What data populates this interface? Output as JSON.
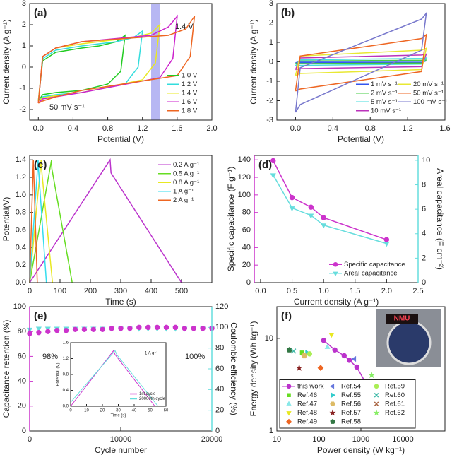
{
  "chart_data": [
    {
      "type": "line",
      "panel_label": "(a)",
      "xlabel": "Potential (V)",
      "ylabel": "Current density  (A g⁻¹)",
      "xlim": [
        -0.1,
        2.0
      ],
      "ylim": [
        -2.5,
        3
      ],
      "xticks": [
        {
          "value": 0,
          "label": "0.0"
        },
        0.4,
        0.8,
        1.2,
        1.6,
        {
          "value": 2,
          "label": "2.0"
        }
      ],
      "yticks": [
        -2,
        -1,
        0,
        1,
        2,
        3
      ],
      "highlight": [
        1.3,
        1.4
      ],
      "highlight_color": "#9999ee",
      "legend": "lower right",
      "annotations": [
        "1.4 V",
        "50 mV s⁻¹"
      ],
      "series": [
        {
          "name": "1.0 V",
          "color": "#22cc22",
          "x": [
            0,
            0.05,
            0.2,
            0.5,
            0.7,
            0.9,
            1.0,
            0.95,
            0.8,
            0.5,
            0.2,
            0.05,
            0
          ],
          "values": [
            -1.6,
            0.3,
            0.7,
            0.9,
            1.0,
            1.2,
            1.5,
            -0.2,
            -0.8,
            -1.1,
            -1.2,
            -1.3,
            -1.6
          ]
        },
        {
          "name": "1.2 V",
          "color": "#33dddd",
          "x": [
            0,
            0.05,
            0.2,
            0.5,
            0.9,
            1.1,
            1.2,
            1.15,
            1.0,
            0.5,
            0.2,
            0.05,
            0
          ],
          "values": [
            -1.6,
            0.4,
            0.8,
            1.0,
            1.2,
            1.4,
            1.7,
            0.0,
            -0.8,
            -1.2,
            -1.3,
            -1.4,
            -1.6
          ]
        },
        {
          "name": "1.4 V",
          "color": "#e8e822",
          "x": [
            0,
            0.05,
            0.2,
            0.5,
            1.1,
            1.3,
            1.4,
            1.35,
            1.2,
            0.5,
            0.2,
            0.05,
            0
          ],
          "values": [
            -1.6,
            0.5,
            0.9,
            1.1,
            1.4,
            1.6,
            2.0,
            0.2,
            -0.6,
            -1.2,
            -1.35,
            -1.45,
            -1.6
          ]
        },
        {
          "name": "1.6 V",
          "color": "#cc22cc",
          "x": [
            0,
            0.05,
            0.2,
            0.5,
            1.3,
            1.5,
            1.6,
            1.55,
            1.4,
            0.5,
            0.2,
            0.05,
            0
          ],
          "values": [
            -1.7,
            0.5,
            0.9,
            1.2,
            1.5,
            1.9,
            2.4,
            0.4,
            -0.5,
            -1.2,
            -1.4,
            -1.5,
            -1.7
          ]
        },
        {
          "name": "1.8 V",
          "color": "#ee6622",
          "x": [
            0,
            0.05,
            0.2,
            0.5,
            1.5,
            1.7,
            1.8,
            1.75,
            1.6,
            0.5,
            0.2,
            0.05,
            0
          ],
          "values": [
            -1.7,
            0.5,
            0.9,
            1.2,
            1.5,
            1.8,
            2.4,
            0.5,
            -0.4,
            -1.1,
            -1.4,
            -1.6,
            -1.7
          ]
        }
      ]
    },
    {
      "type": "line",
      "panel_label": "(b)",
      "xlabel": "Potential (V)",
      "ylabel": "Current density (A g⁻¹)",
      "xlim": [
        -0.2,
        1.6
      ],
      "ylim": [
        -3,
        3
      ],
      "xticks": [
        {
          "value": 0,
          "label": "0.0"
        },
        0.4,
        0.8,
        1.2,
        1.6
      ],
      "yticks": [
        -3,
        -2,
        -1,
        0,
        1,
        2,
        3
      ],
      "legend": "lower right",
      "legend_columns": 2,
      "x": [
        0,
        0.05,
        1.35,
        1.4,
        1.35,
        0.05,
        0
      ],
      "series": [
        {
          "name": "1 mV s⁻¹",
          "color": "#3355ee",
          "values": [
            -0.05,
            0.02,
            0.04,
            0.05,
            -0.03,
            -0.04,
            -0.05
          ]
        },
        {
          "name": "2 mV s⁻¹",
          "color": "#44cc44",
          "values": [
            -0.1,
            0.04,
            0.08,
            0.1,
            -0.06,
            -0.09,
            -0.1
          ]
        },
        {
          "name": "5 mV s⁻¹",
          "color": "#44dddd",
          "values": [
            -0.2,
            0.1,
            0.17,
            0.2,
            -0.12,
            -0.18,
            -0.2
          ]
        },
        {
          "name": "10 mV s⁻¹",
          "color": "#bb33bb",
          "values": [
            -0.4,
            0.2,
            0.35,
            0.4,
            -0.25,
            -0.35,
            -0.4
          ]
        },
        {
          "name": "20 mV s⁻¹",
          "color": "#e8e833",
          "values": [
            -0.7,
            0.3,
            0.6,
            0.7,
            -0.4,
            -0.6,
            -0.7
          ]
        },
        {
          "name": "50 mV s⁻¹",
          "color": "#ee6622",
          "values": [
            -1.5,
            0.3,
            1.2,
            1.4,
            -0.5,
            -1.4,
            -1.5
          ]
        },
        {
          "name": "100 mV s⁻¹",
          "color": "#7777cc",
          "values": [
            -2.6,
            -0.3,
            2.2,
            2.5,
            0.6,
            -2.2,
            -2.6
          ]
        }
      ]
    },
    {
      "type": "line",
      "panel_label": "(c)",
      "xlabel": "Time (s)",
      "ylabel": "Potential(V)",
      "xlim": [
        0,
        600
      ],
      "ylim": [
        0,
        1.45
      ],
      "xticks": [
        0,
        100,
        200,
        300,
        400,
        500
      ],
      "yticks": [
        {
          "value": 0,
          "label": "0.0"
        },
        0.2,
        0.4,
        0.6,
        0.8,
        {
          "value": 1,
          "label": "1.0"
        },
        1.2,
        1.4
      ],
      "legend": "upper right",
      "series": [
        {
          "name": "0.2 A g⁻¹",
          "color": "#bb33cc",
          "x": [
            0,
            265,
            268,
            500
          ],
          "values": [
            0,
            1.4,
            1.25,
            0
          ]
        },
        {
          "name": "0.5 A g⁻¹",
          "color": "#66dd22",
          "x": [
            0,
            72,
            73,
            140
          ],
          "values": [
            0,
            1.4,
            1.3,
            0
          ]
        },
        {
          "name": "0.8 A g⁻¹",
          "color": "#e8e822",
          "x": [
            0,
            38,
            39,
            75
          ],
          "values": [
            0,
            1.4,
            1.3,
            0
          ]
        },
        {
          "name": "1 A g⁻¹",
          "color": "#33ddee",
          "x": [
            0,
            28,
            29,
            55
          ],
          "values": [
            0,
            1.4,
            1.3,
            0
          ]
        },
        {
          "name": "2 A g⁻¹",
          "color": "#ee6622",
          "x": [
            0,
            12,
            13,
            25
          ],
          "values": [
            0,
            1.4,
            1.3,
            0
          ]
        }
      ]
    },
    {
      "type": "line",
      "panel_label": "(d)",
      "xlabel": "Current density (A g⁻¹)",
      "ylabel": "Specific capacitance (F g⁻¹)",
      "y2label": "Areal capacitance (F cm⁻²)",
      "y_color": "#cc33cc",
      "y2_color": "#66dddd",
      "xlim": [
        -0.1,
        2.5
      ],
      "ylim": [
        0,
        145
      ],
      "y2lim": [
        0,
        10.4
      ],
      "xticks": [
        {
          "value": 0,
          "label": "0.0"
        },
        0.5,
        {
          "value": 1,
          "label": "1.0"
        },
        1.5,
        {
          "value": 2,
          "label": "2.0"
        },
        2.5
      ],
      "yticks": [
        0,
        20,
        40,
        60,
        80,
        100,
        120,
        140
      ],
      "y2ticks": [
        0,
        2,
        4,
        6,
        8,
        10
      ],
      "legend": "lower right",
      "x": [
        0.2,
        0.5,
        0.8,
        1.0,
        2.0
      ],
      "series": [
        {
          "name": "Specific capacitance",
          "color": "#cc33cc",
          "marker": "circle",
          "values": [
            139,
            97,
            86,
            74,
            49
          ]
        },
        {
          "name": "Areal capacitance",
          "color": "#66dddd",
          "marker": "triangle-down",
          "axis": "y2",
          "values": [
            8.8,
            6.1,
            5.5,
            4.7,
            3.2
          ]
        }
      ]
    },
    {
      "type": "scatter",
      "panel_label": "(e)",
      "xlabel": "Cycle number",
      "ylabel": "Capacitance retention (%)",
      "y2label": "Coulombic efficiency (%)",
      "y_color": "#cc33cc",
      "y2_color": "#66dddd",
      "xlim": [
        0,
        20000
      ],
      "ylim": [
        0,
        100
      ],
      "y2lim": [
        0,
        120
      ],
      "xticks": [
        0,
        10000,
        20000
      ],
      "yticks": [
        0,
        20,
        40,
        60,
        80,
        100
      ],
      "y2ticks": [
        0,
        20,
        40,
        60,
        80,
        100,
        120
      ],
      "annotations": [
        "98%",
        "100%"
      ],
      "x": [
        0,
        1000,
        2000,
        3000,
        4000,
        5000,
        6000,
        7000,
        8000,
        9000,
        10000,
        11000,
        12000,
        13000,
        14000,
        15000,
        16000,
        17000,
        18000,
        19000,
        20000
      ],
      "series": [
        {
          "color": "#66dddd",
          "marker": "triangle-down",
          "axis": "y2",
          "values": [
            98,
            99,
            99,
            99,
            99,
            99,
            99,
            99,
            99,
            99,
            99,
            99,
            99,
            99,
            99,
            99,
            99,
            99,
            99,
            99,
            99
          ]
        },
        {
          "color": "#cc33cc",
          "marker": "circle",
          "axis": "y2",
          "values": [
            94,
            95,
            96,
            97,
            97,
            98,
            98,
            98,
            98,
            99,
            99,
            99,
            100,
            100,
            100,
            100,
            100,
            99,
            99,
            99,
            99
          ]
        }
      ]
    },
    {
      "type": "line",
      "xlabel": "Time (s)",
      "ylabel": "Potential (V)",
      "xlim": [
        0,
        60
      ],
      "ylim": [
        0,
        1.6
      ],
      "xticks": [
        0,
        10,
        20,
        30,
        40,
        50,
        60
      ],
      "yticks": [
        {
          "value": 0,
          "label": "0.0"
        },
        0.4,
        0.8,
        1.2,
        1.6
      ],
      "legend": "lower right",
      "annotations": [
        "1 A g⁻¹"
      ],
      "series": [
        {
          "name": "1st cycle",
          "color": "#cc33cc",
          "x": [
            0,
            27,
            28,
            53
          ],
          "values": [
            0,
            1.4,
            1.3,
            0
          ]
        },
        {
          "name": "20000th cycle",
          "color": "#66dddd",
          "x": [
            0,
            28,
            29,
            55
          ],
          "values": [
            0.1,
            1.4,
            1.3,
            0
          ]
        }
      ]
    },
    {
      "type": "scatter",
      "panel_label": "(f)",
      "xlabel": "Power density (W kg⁻¹)",
      "ylabel": "Energy density (Wh kg⁻¹)",
      "xlog": true,
      "ylog": true,
      "xlim": [
        10,
        100000
      ],
      "ylim": [
        1,
        22
      ],
      "xticks": [
        10,
        100,
        1000,
        10000
      ],
      "yticks": [
        1,
        10
      ],
      "legend": "lower left",
      "legend_columns": 3,
      "image_text": "NMU",
      "series": [
        {
          "name": "this work",
          "color": "#bb33cc",
          "marker": "circle",
          "line": true,
          "x": [
            130,
            240,
            400,
            530,
            800,
            1300
          ],
          "values": [
            9.5,
            7.5,
            6.5,
            5.8,
            4.9,
            3.3
          ]
        },
        {
          "name": "Ref.46",
          "color": "#66dd22",
          "marker": "square",
          "x": [
            40
          ],
          "values": [
            7
          ]
        },
        {
          "name": "Ref.47",
          "color": "#88e8e8",
          "marker": "triangle-up",
          "x": [
            160
          ],
          "values": [
            8
          ]
        },
        {
          "name": "Ref.48",
          "color": "#e8e822",
          "marker": "triangle-down",
          "x": [
            200
          ],
          "values": [
            11
          ]
        },
        {
          "name": "Ref.49",
          "color": "#ee6622",
          "marker": "diamond",
          "x": [
            110
          ],
          "values": [
            4.8
          ]
        },
        {
          "name": "Ref.54",
          "color": "#6677dd",
          "marker": "triangle-left",
          "x": [
            700
          ],
          "values": [
            6
          ]
        },
        {
          "name": "Ref.55",
          "color": "#33cccc",
          "marker": "triangle-right",
          "x": [
            52
          ],
          "values": [
            7
          ]
        },
        {
          "name": "Ref.56",
          "color": "#ddbb66",
          "marker": "hexagon",
          "x": [
            45
          ],
          "values": [
            6.5
          ]
        },
        {
          "name": "Ref.57",
          "color": "#882222",
          "marker": "star",
          "x": [
            34
          ],
          "values": [
            4.8
          ]
        },
        {
          "name": "Ref.58",
          "color": "#337744",
          "marker": "pentagon",
          "x": [
            20
          ],
          "values": [
            7.5
          ]
        },
        {
          "name": "Ref.59",
          "color": "#aaee55",
          "marker": "circle",
          "x": [
            60
          ],
          "values": [
            6.8
          ]
        },
        {
          "name": "Ref.60",
          "color": "#44bbaa",
          "marker": "x",
          "x": [
            25
          ],
          "values": [
            7.3
          ]
        },
        {
          "name": "Ref.61",
          "color": "#aa6644",
          "marker": "x",
          "x": [
            320
          ],
          "values": [
            3.2
          ]
        },
        {
          "name": "Ref.62",
          "color": "#88ee66",
          "marker": "star",
          "x": [
            1800
          ],
          "values": [
            4
          ]
        }
      ]
    }
  ]
}
